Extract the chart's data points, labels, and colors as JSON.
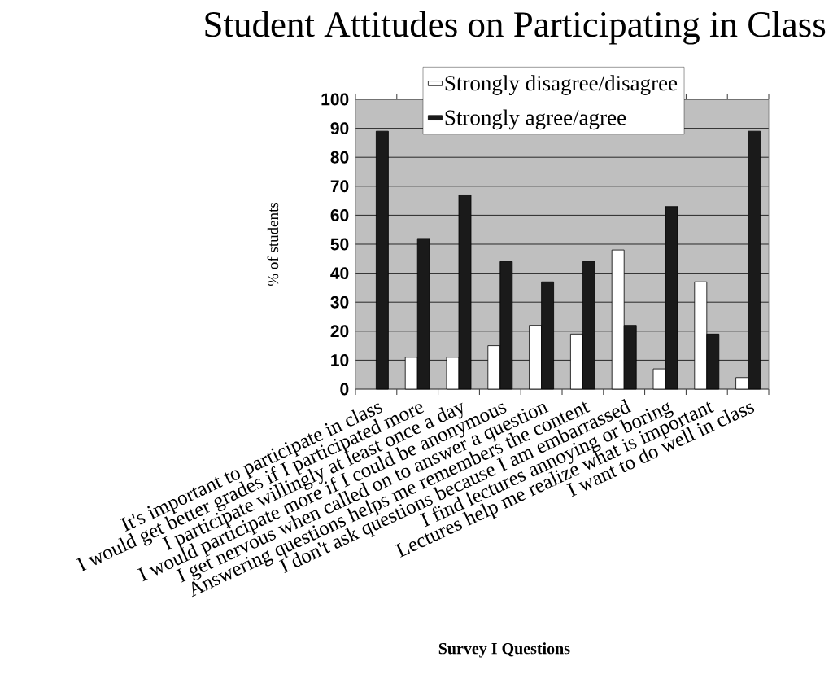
{
  "chart_data": {
    "type": "bar",
    "title": "Student Attitudes on Participating in Class",
    "xlabel": "Survey I Questions",
    "ylabel": "% of students",
    "categories": [
      "It's important to participate in class",
      "I would get better grades if I participated more",
      "I participate willingly at least once a day",
      "I would participate more if I could be anonymous",
      "I get nervous when called on to answer a question",
      "Answering questions helps me remembers the content",
      "I don't ask questions because I am embarrassed",
      "I find lectures annoying or boring",
      "Lectures help me realize what is important",
      "I want to do well in class"
    ],
    "series": [
      {
        "name": "Strongly disagree/disagree",
        "color": "#ffffff",
        "values": [
          null,
          11,
          11,
          15,
          22,
          19,
          48,
          7,
          37,
          4
        ]
      },
      {
        "name": "Strongly agree/agree",
        "color": "#1a1a1a",
        "values": [
          89,
          52,
          67,
          44,
          37,
          44,
          22,
          63,
          19,
          89
        ]
      }
    ],
    "ylim": [
      0,
      100
    ],
    "yticks": [
      0,
      10,
      20,
      30,
      40,
      50,
      60,
      70,
      80,
      90,
      100
    ],
    "grid": "y",
    "legend": "top"
  }
}
